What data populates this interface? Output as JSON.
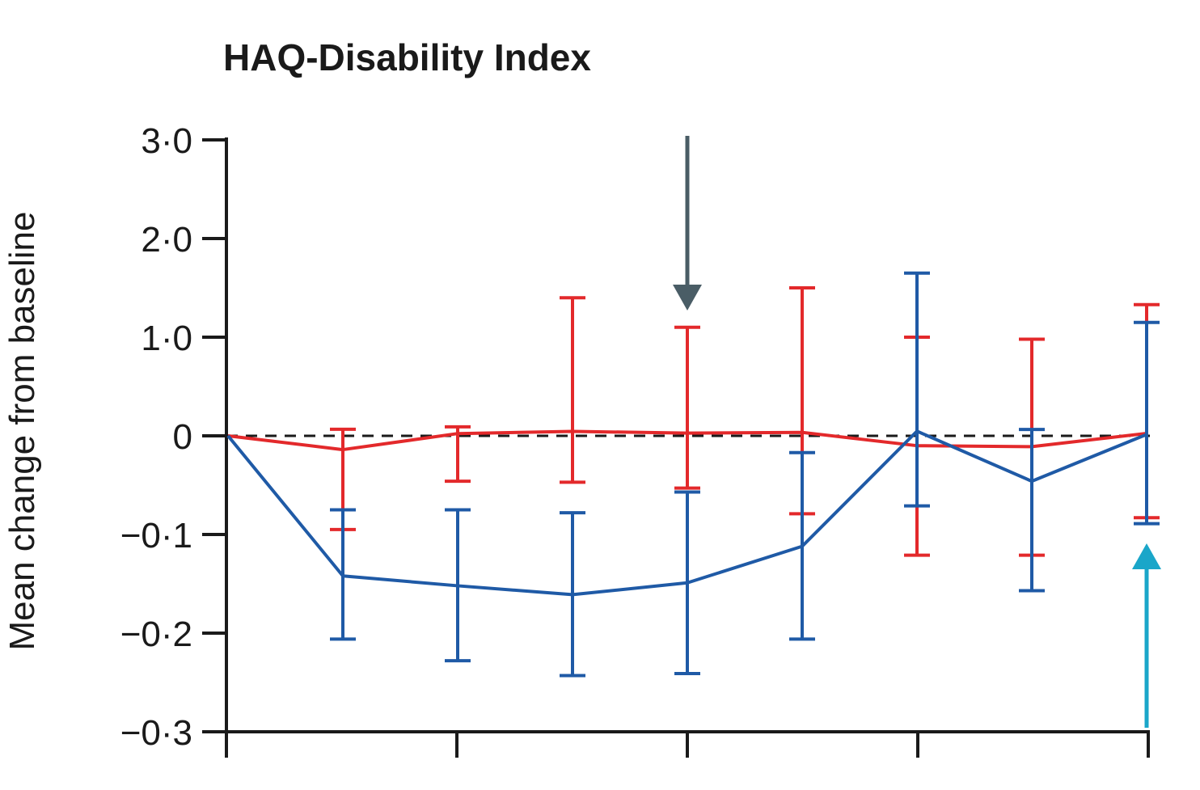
{
  "chart_data": {
    "type": "line",
    "title": "HAQ-Disability Index",
    "ylabel": "Mean change from baseline",
    "y_ticks": [
      "3·0",
      "2·0",
      "1·0",
      "0",
      "−0·1",
      "−0·2",
      "−0·3"
    ],
    "x_tick_count": 5,
    "x": [
      0,
      1,
      2,
      3,
      4,
      5,
      6,
      7,
      8
    ],
    "series": [
      {
        "color": "#e3292b",
        "values": [
          0,
          -0.014,
          0.023,
          0.045,
          0.028,
          0.035,
          -0.01,
          -0.011,
          0.025
        ],
        "err_low": [
          null,
          -0.095,
          -0.046,
          -0.047,
          -0.053,
          -0.079,
          -0.121,
          -0.121,
          -0.083
        ],
        "err_high": [
          null,
          0.067,
          0.091,
          1.4,
          1.1,
          1.5,
          1.0,
          0.98,
          1.33
        ]
      },
      {
        "color": "#1f5aa6",
        "values": [
          0,
          -0.142,
          -0.152,
          -0.161,
          -0.149,
          -0.112,
          0.047,
          -0.046,
          0.014
        ],
        "err_low": [
          null,
          -0.206,
          -0.228,
          -0.243,
          -0.241,
          -0.206,
          -0.071,
          -0.157,
          -0.089
        ],
        "err_high": [
          null,
          -0.075,
          -0.075,
          -0.078,
          -0.057,
          -0.017,
          1.65,
          0.065,
          1.15
        ]
      }
    ],
    "reference_line": 0,
    "annotations": [
      {
        "type": "arrow-down",
        "x": 4,
        "color": "#4a5d66"
      },
      {
        "type": "arrow-up",
        "x": 8,
        "color": "#1aa6c9"
      }
    ]
  }
}
